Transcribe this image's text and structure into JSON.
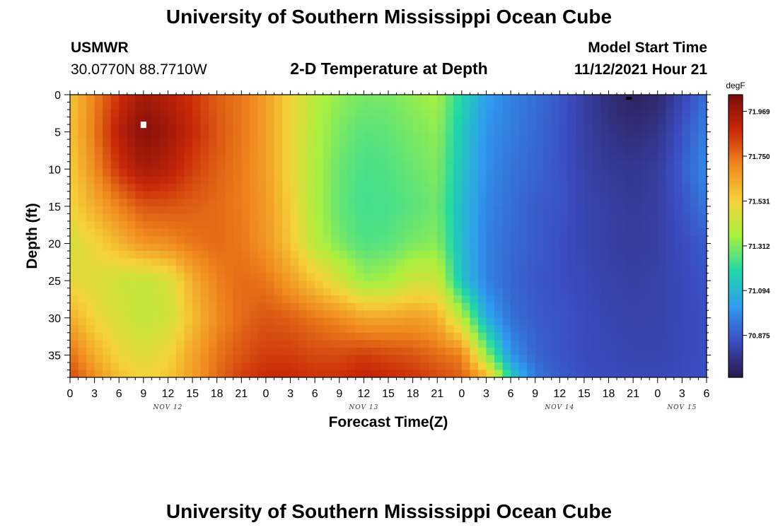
{
  "header": {
    "title": "University of Southern Mississippi Ocean Cube",
    "station_id": "USMWR",
    "coords": "30.0770N  88.7710W",
    "plot_title": "2-D Temperature at Depth",
    "model_start_label": "Model Start Time",
    "model_start_value": "11/12/2021 Hour 21"
  },
  "footer": {
    "title": "University of Southern Mississippi Ocean Cube"
  },
  "chart_data": {
    "type": "heatmap",
    "title": "2-D Temperature at Depth",
    "xlabel": "Forecast Time(Z)",
    "ylabel": "Depth (ft)",
    "colorbar_unit": "degF",
    "x_hours": [
      0,
      3,
      6,
      9,
      12,
      15,
      18,
      21,
      24,
      27,
      30,
      33,
      36,
      39,
      42,
      45,
      48,
      51,
      54,
      57,
      60,
      63,
      66,
      69,
      72,
      75,
      78
    ],
    "x_tick_labels": [
      "0",
      "3",
      "6",
      "9",
      "12",
      "15",
      "18",
      "21",
      "0",
      "3",
      "6",
      "9",
      "12",
      "15",
      "18",
      "21",
      "0",
      "3",
      "6",
      "9",
      "12",
      "15",
      "18",
      "21",
      "0",
      "3",
      "6"
    ],
    "x_range_hours": [
      0,
      78
    ],
    "day_labels": [
      {
        "label": "NOV 12",
        "hour": 12
      },
      {
        "label": "NOV 13",
        "hour": 36
      },
      {
        "label": "NOV 14",
        "hour": 60
      },
      {
        "label": "NOV 15",
        "hour": 75
      }
    ],
    "y_ticks": [
      0,
      5,
      10,
      15,
      20,
      25,
      30,
      35
    ],
    "y_range": [
      0,
      38
    ],
    "y_inverted": true,
    "colorbar_ticks": [
      71.969,
      71.75,
      71.531,
      71.312,
      71.094,
      70.875
    ],
    "colorbar_tick_labels": [
      "71.969",
      "71.750",
      "71.531",
      "71.312",
      "71.094",
      "70.875"
    ],
    "value_range": [
      70.67,
      72.05
    ],
    "colormap": [
      "#2a1a4a",
      "#3b4cc0",
      "#2f9bf0",
      "#1fd8a8",
      "#a8f040",
      "#f5d23a",
      "#f08a1e",
      "#c82808",
      "#7a0b0b"
    ],
    "grid": false,
    "temperature_field": {
      "description": "temperature degF sampled at depth rows (ft) and forecast hour columns",
      "depths_ft": [
        0,
        5,
        10,
        15,
        20,
        25,
        30,
        35,
        38
      ],
      "hours": [
        0,
        3,
        6,
        9,
        12,
        15,
        18,
        21,
        24,
        27,
        30,
        33,
        36,
        39,
        42,
        45,
        48,
        51,
        54,
        57,
        60,
        63,
        66,
        69,
        72,
        75,
        78
      ],
      "values": [
        [
          71.56,
          71.72,
          71.86,
          71.96,
          71.92,
          71.86,
          71.78,
          71.74,
          71.66,
          71.52,
          71.39,
          71.33,
          71.3,
          71.3,
          71.33,
          71.36,
          71.18,
          71.03,
          70.96,
          70.92,
          70.87,
          70.8,
          70.74,
          70.7,
          70.72,
          70.82,
          70.92
        ],
        [
          71.56,
          71.74,
          71.92,
          72.02,
          71.97,
          71.88,
          71.8,
          71.74,
          71.66,
          71.52,
          71.38,
          71.3,
          71.26,
          71.27,
          71.3,
          71.33,
          71.14,
          71.0,
          70.95,
          70.91,
          70.86,
          70.8,
          70.76,
          70.74,
          70.76,
          70.86,
          70.96
        ],
        [
          71.54,
          71.7,
          71.86,
          71.95,
          71.92,
          71.84,
          71.78,
          71.73,
          71.66,
          71.52,
          71.37,
          71.28,
          71.24,
          71.25,
          71.28,
          71.31,
          71.12,
          70.99,
          70.93,
          70.9,
          70.86,
          70.81,
          70.78,
          70.77,
          70.79,
          70.88,
          70.98
        ],
        [
          71.52,
          71.62,
          71.72,
          71.8,
          71.8,
          71.78,
          71.76,
          71.73,
          71.67,
          71.54,
          71.37,
          71.27,
          71.23,
          71.24,
          71.26,
          71.29,
          71.1,
          70.97,
          70.92,
          70.88,
          70.86,
          70.82,
          70.8,
          70.78,
          70.8,
          70.86,
          70.94
        ],
        [
          71.46,
          71.52,
          71.6,
          71.68,
          71.7,
          71.74,
          71.76,
          71.74,
          71.68,
          71.56,
          71.4,
          71.3,
          71.25,
          71.26,
          71.3,
          71.32,
          71.1,
          70.96,
          70.91,
          70.88,
          70.85,
          70.82,
          70.8,
          70.79,
          70.8,
          70.84,
          70.88
        ],
        [
          71.5,
          71.48,
          71.44,
          71.42,
          71.46,
          71.62,
          71.72,
          71.76,
          71.74,
          71.66,
          71.56,
          71.46,
          71.34,
          71.36,
          71.44,
          71.44,
          71.12,
          70.96,
          70.9,
          70.87,
          70.85,
          70.83,
          70.81,
          70.8,
          70.81,
          70.83,
          70.86
        ],
        [
          71.62,
          71.52,
          71.46,
          71.42,
          71.44,
          71.58,
          71.7,
          71.76,
          71.8,
          71.78,
          71.74,
          71.7,
          71.64,
          71.64,
          71.66,
          71.62,
          71.4,
          71.06,
          70.92,
          70.88,
          70.86,
          70.84,
          70.82,
          70.81,
          70.81,
          70.83,
          70.85
        ],
        [
          71.76,
          71.62,
          71.52,
          71.48,
          71.52,
          71.64,
          71.74,
          71.8,
          71.84,
          71.84,
          71.82,
          71.82,
          71.84,
          71.82,
          71.8,
          71.76,
          71.72,
          71.34,
          71.0,
          70.9,
          70.86,
          70.84,
          70.83,
          70.82,
          70.82,
          70.83,
          70.85
        ],
        [
          71.82,
          71.7,
          71.58,
          71.52,
          71.56,
          71.66,
          71.76,
          71.84,
          71.88,
          71.88,
          71.86,
          71.86,
          71.9,
          71.88,
          71.86,
          71.82,
          71.78,
          71.62,
          71.16,
          70.94,
          70.88,
          70.85,
          70.84,
          70.83,
          70.83,
          70.84,
          70.85
        ]
      ]
    },
    "markers": [
      {
        "kind": "white-square",
        "hour": 9,
        "depth": 4
      },
      {
        "kind": "black-dash",
        "hour": 68.5,
        "depth": 0.2
      }
    ]
  }
}
